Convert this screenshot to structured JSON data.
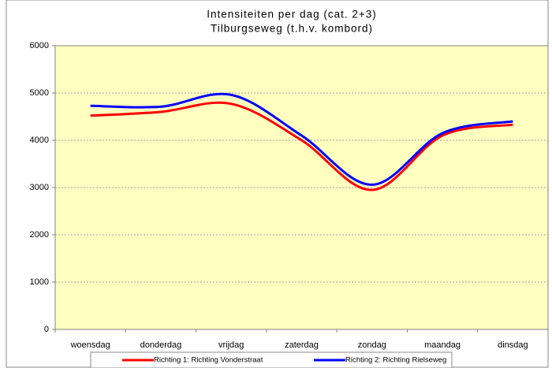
{
  "chart_data": {
    "type": "line",
    "title": "Intensiteiten per dag (cat. 2+3)",
    "subtitle": "Tilburgseweg (t.h.v. kombord)",
    "categories": [
      "woensdag",
      "donderdag",
      "vrijdag",
      "zaterdag",
      "zondag",
      "maandag",
      "dinsdag"
    ],
    "series": [
      {
        "name": "Richting 1: Richting Vonderstraat",
        "color": "#ff0000",
        "values": [
          4520,
          4600,
          4770,
          4000,
          2950,
          4100,
          4330
        ]
      },
      {
        "name": "Richting 2: Richting Rielseweg",
        "color": "#0000ff",
        "values": [
          4730,
          4710,
          4960,
          4100,
          3060,
          4150,
          4400
        ]
      }
    ],
    "ylim": [
      0,
      6000
    ],
    "yticks": [
      0,
      1000,
      2000,
      3000,
      4000,
      5000,
      6000
    ],
    "grid": true,
    "smooth": true,
    "legend": "bottom"
  }
}
